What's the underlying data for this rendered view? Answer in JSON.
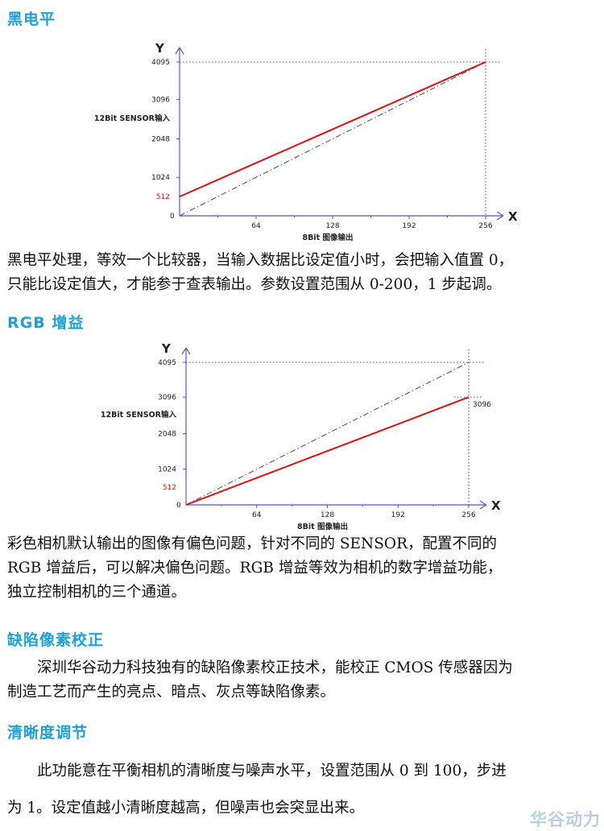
{
  "sections": {
    "black_level": {
      "heading": "黑电平",
      "lines": [
        "黑电平处理，等效一个比较器，当输入数据比设定值小时，会把输入值置 0，",
        "只能比设定值大，才能参于查表输出。参数设置范围从 0-200，1 步起调。"
      ]
    },
    "rgb_gain": {
      "heading": "RGB 增益",
      "lines": [
        "彩色相机默认输出的图像有偏色问题，针对不同的 SENSOR，配置不同的",
        "RGB 增益后，可以解决偏色问题。RGB 增益等效为相机的数字增益功能，",
        "独立控制相机的三个通道。"
      ]
    },
    "defect_pixel": {
      "heading": "缺陷像素校正",
      "lines": [
        "深圳华谷动力科技独有的缺陷像素校正技术，能校正 CMOS 传感器因为",
        "制造工艺而产生的亮点、暗点、灰点等缺陷像素。"
      ]
    },
    "sharpness": {
      "heading": "清晰度调节",
      "lines": [
        "此功能意在平衡相机的清晰度与噪声水平，设置范围从 0 到 100，步进",
        "为 1。设定值越小清晰度越高，但噪声也会突显出来。"
      ]
    }
  },
  "watermark": "华谷动力",
  "chart_data": [
    {
      "type": "line",
      "x_axis_name": "X",
      "y_axis_name": "Y",
      "xlabel": "8Bit 图像输出",
      "ylabel": "12Bit SENSOR输入",
      "x_ticks": [
        0,
        64,
        128,
        192,
        256
      ],
      "x_tick_labels": [
        "64",
        "128",
        "192",
        "256"
      ],
      "y_ticks": [
        1024,
        2048,
        3096,
        4095
      ],
      "y_tick_labels": [
        "1024",
        "2048",
        "3096",
        "4095"
      ],
      "origin_label": "0",
      "xlim": [
        0,
        256
      ],
      "ylim": [
        0,
        4095
      ],
      "reference_line": {
        "x": [
          0,
          256
        ],
        "y": [
          0,
          4095
        ],
        "style": "dash-dot",
        "color": "#3344aa"
      },
      "main_line": {
        "x": [
          0,
          256
        ],
        "y": [
          512,
          4095
        ],
        "color": "#dd1111"
      },
      "highlight_label": "512",
      "highlight_value": 512,
      "guides": {
        "x": 256,
        "y": 4095
      }
    },
    {
      "type": "line",
      "x_axis_name": "X",
      "y_axis_name": "Y",
      "xlabel": "8Bit 图像输出",
      "ylabel": "12Bit SENSOR输入",
      "x_ticks": [
        0,
        64,
        128,
        192,
        256
      ],
      "x_tick_labels": [
        "64",
        "128",
        "192",
        "256"
      ],
      "y_ticks": [
        1024,
        2048,
        3096,
        4095
      ],
      "y_tick_labels": [
        "1024",
        "2048",
        "3096",
        "4095"
      ],
      "origin_label": "0",
      "xlim": [
        0,
        256
      ],
      "ylim": [
        0,
        4095
      ],
      "reference_line": {
        "x": [
          0,
          256
        ],
        "y": [
          0,
          4095
        ],
        "style": "dash-dot",
        "color": "#3344aa"
      },
      "main_line": {
        "x": [
          0,
          256
        ],
        "y": [
          0,
          3096
        ],
        "color": "#dd1111"
      },
      "end_label": "3096",
      "highlight_label": "512",
      "highlight_value": 512,
      "guides": {
        "x": 256,
        "y": 4095,
        "y2": 3096
      }
    }
  ]
}
